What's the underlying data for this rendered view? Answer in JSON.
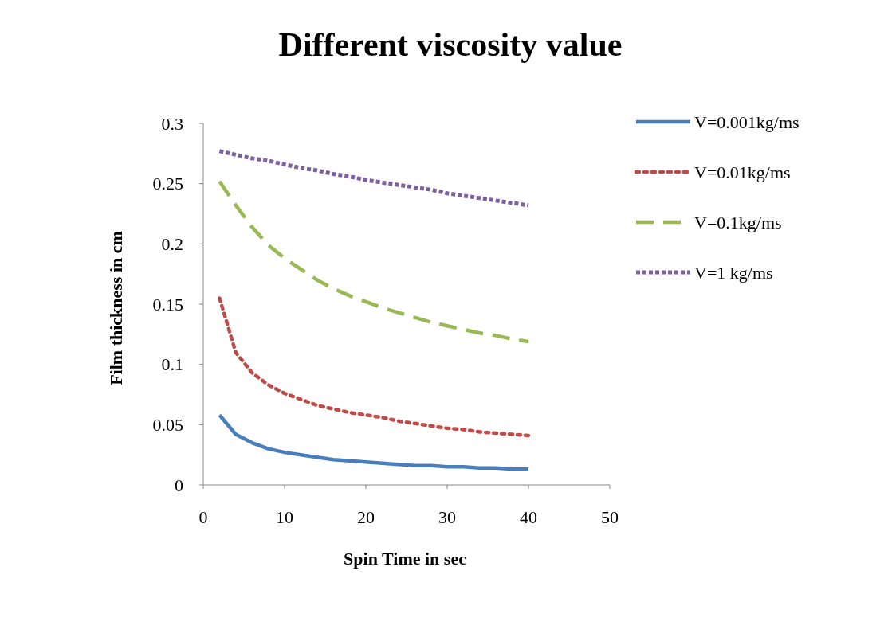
{
  "chart_data": {
    "type": "line",
    "title": "Different viscosity value",
    "xlabel": "Spin Time in sec",
    "ylabel": "Film thickness in cm",
    "x": [
      2,
      4,
      6,
      8,
      10,
      12,
      14,
      16,
      18,
      20,
      22,
      24,
      26,
      28,
      30,
      32,
      34,
      36,
      38,
      40
    ],
    "xlim": [
      0,
      50
    ],
    "xticks": [
      0,
      10,
      20,
      30,
      40,
      50
    ],
    "ylim": [
      0,
      0.3
    ],
    "yticks": [
      0,
      0.05,
      0.1,
      0.15,
      0.2,
      0.25,
      0.3
    ],
    "grid": false,
    "legend": "top right",
    "marker": "none",
    "series": [
      {
        "name": "V=0.001kg/ms",
        "color": "#4a7ebb",
        "line_style": "solid",
        "values": [
          0.058,
          0.042,
          0.035,
          0.03,
          0.027,
          0.025,
          0.023,
          0.021,
          0.02,
          0.019,
          0.018,
          0.017,
          0.016,
          0.016,
          0.015,
          0.015,
          0.014,
          0.014,
          0.013,
          0.013
        ]
      },
      {
        "name": "V=0.01kg/ms",
        "color": "#be4b48",
        "line_style": "dotted",
        "values": [
          0.155,
          0.11,
          0.093,
          0.083,
          0.076,
          0.071,
          0.066,
          0.063,
          0.06,
          0.058,
          0.056,
          0.053,
          0.051,
          0.049,
          0.047,
          0.046,
          0.044,
          0.043,
          0.042,
          0.041
        ]
      },
      {
        "name": "V=0.1kg/ms",
        "color": "#98b954",
        "line_style": "dashed",
        "values": [
          0.252,
          0.232,
          0.214,
          0.199,
          0.188,
          0.179,
          0.17,
          0.163,
          0.157,
          0.152,
          0.147,
          0.143,
          0.139,
          0.135,
          0.132,
          0.129,
          0.126,
          0.124,
          0.121,
          0.119
        ]
      },
      {
        "name": "V=1 kg/ms",
        "color": "#7d60a0",
        "line_style": "dotted",
        "values": [
          0.277,
          0.274,
          0.271,
          0.269,
          0.266,
          0.263,
          0.261,
          0.258,
          0.256,
          0.253,
          0.251,
          0.249,
          0.247,
          0.245,
          0.242,
          0.24,
          0.238,
          0.236,
          0.234,
          0.232
        ]
      }
    ]
  }
}
